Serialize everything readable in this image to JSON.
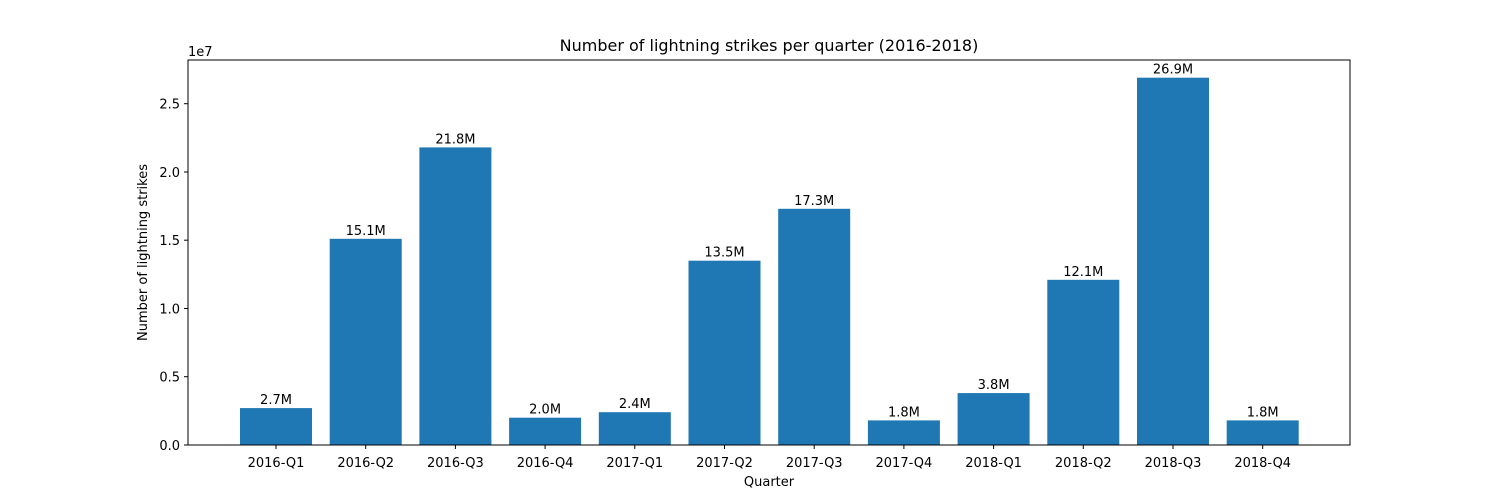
{
  "chart_data": {
    "type": "bar",
    "title": "Number of lightning strikes per quarter (2016-2018)",
    "xlabel": "Quarter",
    "ylabel": "Number of lightning strikes",
    "y_offset_label": "1e7",
    "ylim": [
      0,
      28200000
    ],
    "yticks": [
      0,
      5000000,
      10000000,
      15000000,
      20000000,
      25000000
    ],
    "ytick_labels": [
      "0.0",
      "0.5",
      "1.0",
      "1.5",
      "2.0",
      "2.5"
    ],
    "categories": [
      "2016-Q1",
      "2016-Q2",
      "2016-Q3",
      "2016-Q4",
      "2017-Q1",
      "2017-Q2",
      "2017-Q3",
      "2017-Q4",
      "2018-Q1",
      "2018-Q2",
      "2018-Q3",
      "2018-Q4"
    ],
    "values": [
      2700000,
      15100000,
      21800000,
      2000000,
      2400000,
      13500000,
      17300000,
      1800000,
      3800000,
      12100000,
      26900000,
      1800000
    ],
    "data_labels": [
      "2.7M",
      "15.1M",
      "21.8M",
      "2.0M",
      "2.4M",
      "13.5M",
      "17.3M",
      "1.8M",
      "3.8M",
      "12.1M",
      "26.9M",
      "1.8M"
    ],
    "bar_color": "#1f77b4",
    "grid": false,
    "legend": "none"
  }
}
